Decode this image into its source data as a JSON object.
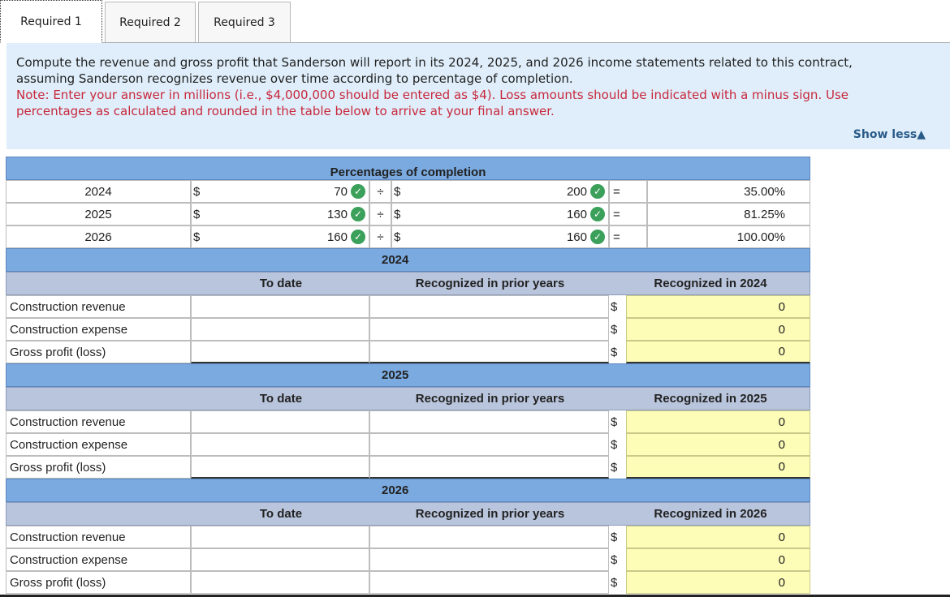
{
  "tabs": [
    {
      "label": "Required 1",
      "active": true
    },
    {
      "label": "Required 2",
      "active": false
    },
    {
      "label": "Required 3",
      "active": false
    }
  ],
  "instructions": {
    "line1": "Compute the revenue and gross profit that Sanderson will report in its 2024, 2025, and 2026 income statements related to this contract,",
    "line2": "assuming Sanderson recognizes revenue over time according to percentage of completion.",
    "note1": "Note: Enter your answer in millions (i.e., $4,000,000 should be entered as $4). Loss amounts should be indicated with a minus sign. Use",
    "note2": "percentages as calculated and rounded in the table below to arrive at your final answer.",
    "show_less": "Show less▲"
  },
  "percentages": {
    "title": "Percentages of completion",
    "rows": [
      {
        "year": "2024",
        "dollar1": "$",
        "num": "70",
        "div": "÷",
        "dollar2": "$",
        "den": "200",
        "eq": "=",
        "pct": "35.00%"
      },
      {
        "year": "2025",
        "dollar1": "$",
        "num": "130",
        "div": "÷",
        "dollar2": "$",
        "den": "160",
        "eq": "=",
        "pct": "81.25%"
      },
      {
        "year": "2026",
        "dollar1": "$",
        "num": "160",
        "div": "÷",
        "dollar2": "$",
        "den": "160",
        "eq": "=",
        "pct": "100.00%"
      }
    ]
  },
  "sections": [
    {
      "year": "2024",
      "col_to_date": "To date",
      "col_prior": "Recognized in prior years",
      "col_recognized": "Recognized in 2024",
      "rows": [
        {
          "label": "Construction revenue",
          "dollar": "$",
          "value": "0"
        },
        {
          "label": "Construction expense",
          "dollar": "$",
          "value": "0"
        },
        {
          "label": "Gross profit (loss)",
          "dollar": "$",
          "value": "0"
        }
      ]
    },
    {
      "year": "2025",
      "col_to_date": "To date",
      "col_prior": "Recognized in prior years",
      "col_recognized": "Recognized in 2025",
      "rows": [
        {
          "label": "Construction revenue",
          "dollar": "$",
          "value": "0"
        },
        {
          "label": "Construction expense",
          "dollar": "$",
          "value": "0"
        },
        {
          "label": "Gross profit (loss)",
          "dollar": "$",
          "value": "0"
        }
      ]
    },
    {
      "year": "2026",
      "col_to_date": "To date",
      "col_prior": "Recognized in prior years",
      "col_recognized": "Recognized in 2026",
      "rows": [
        {
          "label": "Construction revenue",
          "dollar": "$",
          "value": "0"
        },
        {
          "label": "Construction expense",
          "dollar": "$",
          "value": "0"
        },
        {
          "label": "Gross profit (loss)",
          "dollar": "$",
          "value": "0"
        }
      ]
    }
  ],
  "icons": {
    "check": "check-circle-icon"
  },
  "colors": {
    "header_blue": "#7aaae0",
    "header_grey": "#b9c5dc",
    "input_yellow": "#fdfdb8",
    "check_green": "#3aa05a",
    "note_red": "#c8283c"
  }
}
